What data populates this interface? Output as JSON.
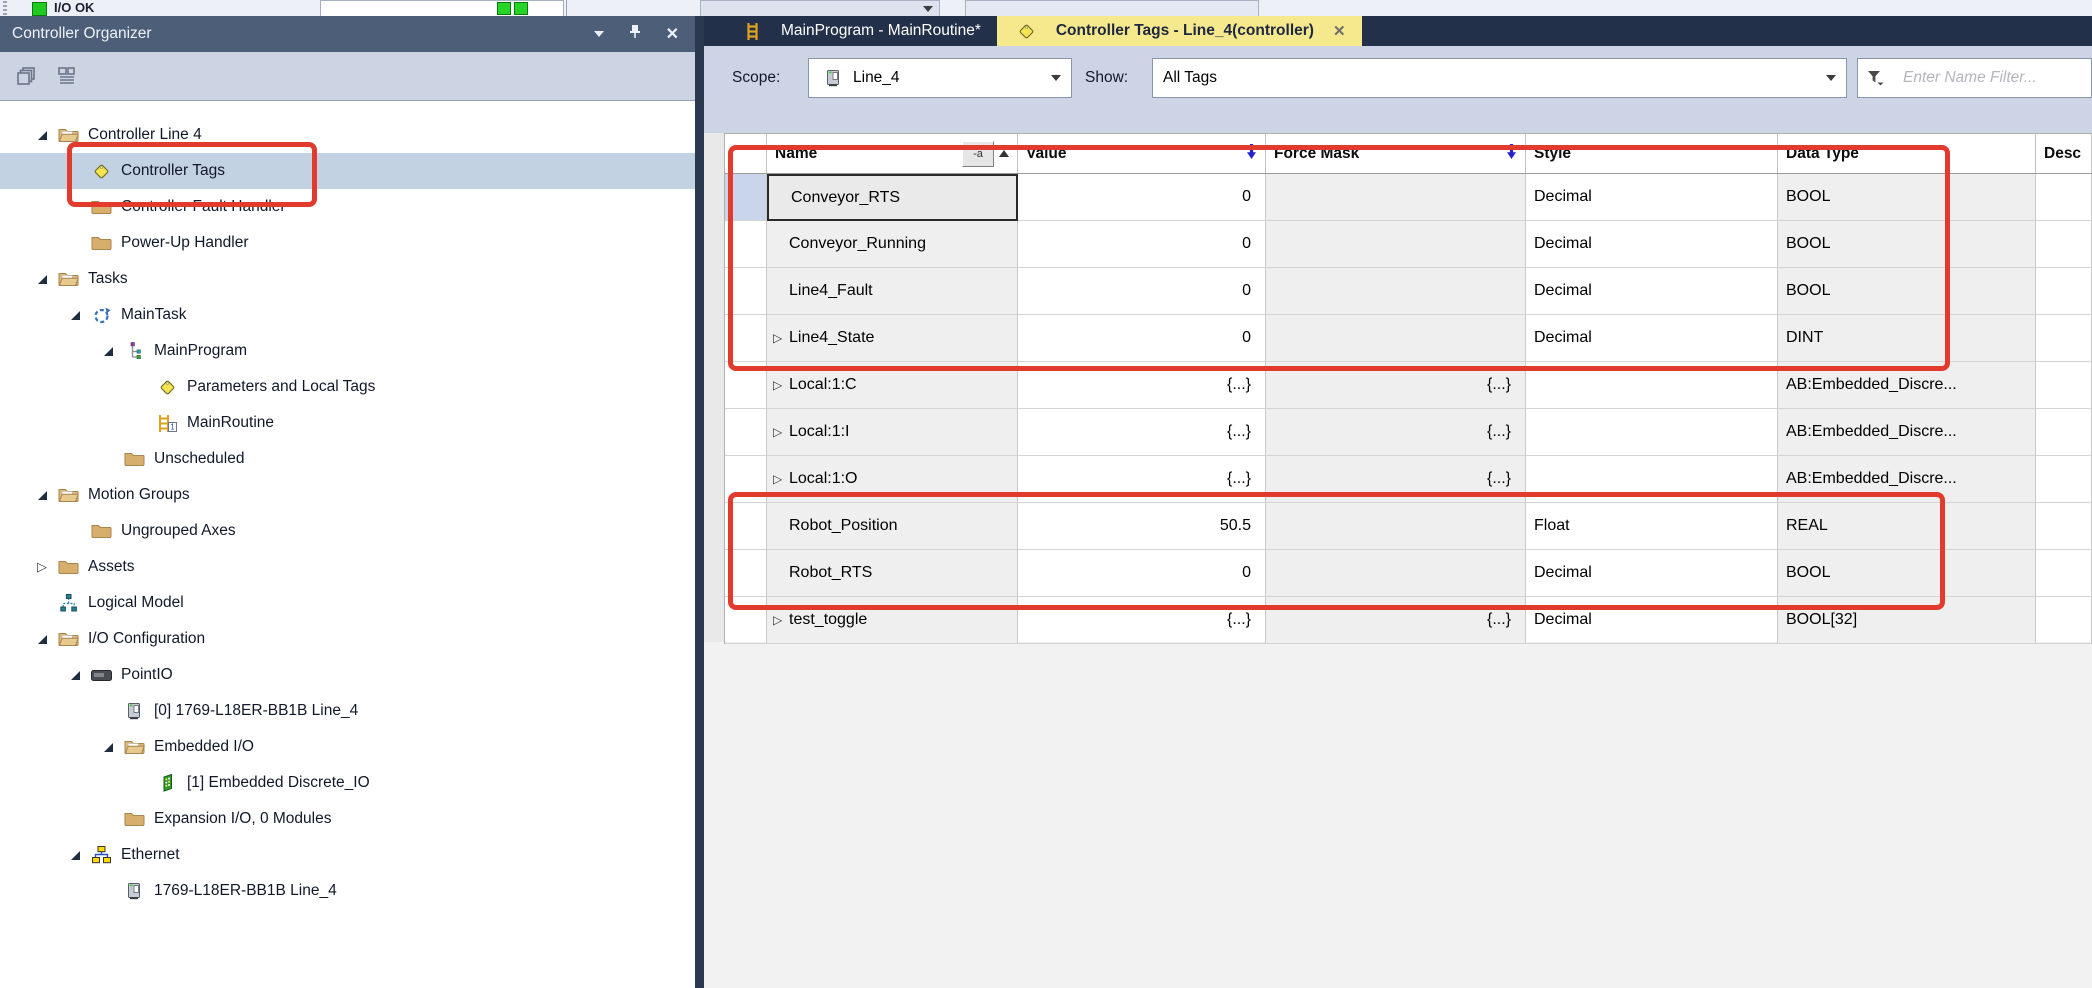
{
  "top_strip": {
    "io_status": "I/O OK"
  },
  "organizer": {
    "title": "Controller Organizer",
    "tree": [
      {
        "label": "Controller Line 4",
        "level": 0,
        "expand": "expanded",
        "icon": "folder-open"
      },
      {
        "label": "Controller Tags",
        "level": 1,
        "expand": "none",
        "icon": "tag",
        "selected": true
      },
      {
        "label": "Controller Fault Handler",
        "level": 1,
        "expand": "none",
        "icon": "folder-closed"
      },
      {
        "label": "Power-Up Handler",
        "level": 1,
        "expand": "none",
        "icon": "folder-closed"
      },
      {
        "label": "Tasks",
        "level": 0,
        "expand": "expanded",
        "icon": "folder-open"
      },
      {
        "label": "MainTask",
        "level": 1,
        "expand": "expanded",
        "icon": "task"
      },
      {
        "label": "MainProgram",
        "level": 2,
        "expand": "expanded",
        "icon": "program"
      },
      {
        "label": "Parameters and Local Tags",
        "level": 3,
        "expand": "none",
        "icon": "tag"
      },
      {
        "label": "MainRoutine",
        "level": 3,
        "expand": "none",
        "icon": "routine"
      },
      {
        "label": "Unscheduled",
        "level": 2,
        "expand": "none",
        "icon": "folder-closed"
      },
      {
        "label": "Motion Groups",
        "level": 0,
        "expand": "expanded",
        "icon": "folder-open"
      },
      {
        "label": "Ungrouped Axes",
        "level": 1,
        "expand": "none",
        "icon": "folder-closed"
      },
      {
        "label": "Assets",
        "level": 0,
        "expand": "collapsed",
        "icon": "folder-closed"
      },
      {
        "label": "Logical Model",
        "level": 0,
        "expand": "none",
        "icon": "logical-model"
      },
      {
        "label": "I/O Configuration",
        "level": 0,
        "expand": "expanded",
        "icon": "folder-open"
      },
      {
        "label": "PointIO",
        "level": 1,
        "expand": "expanded",
        "icon": "pointio-module"
      },
      {
        "label": "[0] 1769-L18ER-BB1B Line_4",
        "level": 2,
        "expand": "none",
        "icon": "controller-module"
      },
      {
        "label": "Embedded I/O",
        "level": 2,
        "expand": "expanded",
        "icon": "folder-open"
      },
      {
        "label": "[1] Embedded Discrete_IO",
        "level": 3,
        "expand": "none",
        "icon": "io-card"
      },
      {
        "label": "Expansion I/O, 0 Modules",
        "level": 2,
        "expand": "none",
        "icon": "folder-closed"
      },
      {
        "label": "Ethernet",
        "level": 1,
        "expand": "expanded",
        "icon": "ethernet"
      },
      {
        "label": "1769-L18ER-BB1B Line_4",
        "level": 2,
        "expand": "none",
        "icon": "controller-module"
      }
    ]
  },
  "tabs": [
    {
      "label": "MainProgram - MainRoutine*",
      "icon": "ladder",
      "active": false,
      "closable": false
    },
    {
      "label": "Controller Tags - Line_4(controller)",
      "icon": "tag",
      "active": true,
      "closable": true
    }
  ],
  "toolbar": {
    "scope_label": "Scope:",
    "scope_value": "Line_4",
    "show_label": "Show:",
    "show_value": "All Tags",
    "filter_placeholder": "Enter Name Filter..."
  },
  "table": {
    "columns": [
      {
        "id": "name",
        "label": "Name"
      },
      {
        "id": "value",
        "label": "Value"
      },
      {
        "id": "force_mask",
        "label": "Force Mask"
      },
      {
        "id": "style",
        "label": "Style"
      },
      {
        "id": "data_type",
        "label": "Data Type"
      },
      {
        "id": "desc",
        "label": "Desc"
      }
    ],
    "rows": [
      {
        "name": "Conveyor_RTS",
        "value": "0",
        "force_mask": "",
        "style": "Decimal",
        "data_type": "BOOL",
        "expandable": false,
        "selected": true
      },
      {
        "name": "Conveyor_Running",
        "value": "0",
        "force_mask": "",
        "style": "Decimal",
        "data_type": "BOOL",
        "expandable": false
      },
      {
        "name": "Line4_Fault",
        "value": "0",
        "force_mask": "",
        "style": "Decimal",
        "data_type": "BOOL",
        "expandable": false
      },
      {
        "name": "Line4_State",
        "value": "0",
        "force_mask": "",
        "style": "Decimal",
        "data_type": "DINT",
        "expandable": true
      },
      {
        "name": "Local:1:C",
        "value": "{...}",
        "force_mask": "{...}",
        "style": "",
        "data_type": "AB:Embedded_Discre...",
        "expandable": true
      },
      {
        "name": "Local:1:I",
        "value": "{...}",
        "force_mask": "{...}",
        "style": "",
        "data_type": "AB:Embedded_Discre...",
        "expandable": true
      },
      {
        "name": "Local:1:O",
        "value": "{...}",
        "force_mask": "{...}",
        "style": "",
        "data_type": "AB:Embedded_Discre...",
        "expandable": true
      },
      {
        "name": "Robot_Position",
        "value": "50.5",
        "force_mask": "",
        "style": "Float",
        "data_type": "REAL",
        "expandable": false
      },
      {
        "name": "Robot_RTS",
        "value": "0",
        "force_mask": "",
        "style": "Decimal",
        "data_type": "BOOL",
        "expandable": false
      },
      {
        "name": "test_toggle",
        "value": "{...}",
        "force_mask": "{...}",
        "style": "Decimal",
        "data_type": "BOOL[32]",
        "expandable": true
      }
    ]
  },
  "colors": {
    "annotation_red": "#e23b2e",
    "active_tab_yellow": "#f6e88d",
    "selection_blue": "#c3d2e2",
    "titlebar_slate": "#4d5e79",
    "tabbar_navy": "#22304a"
  }
}
